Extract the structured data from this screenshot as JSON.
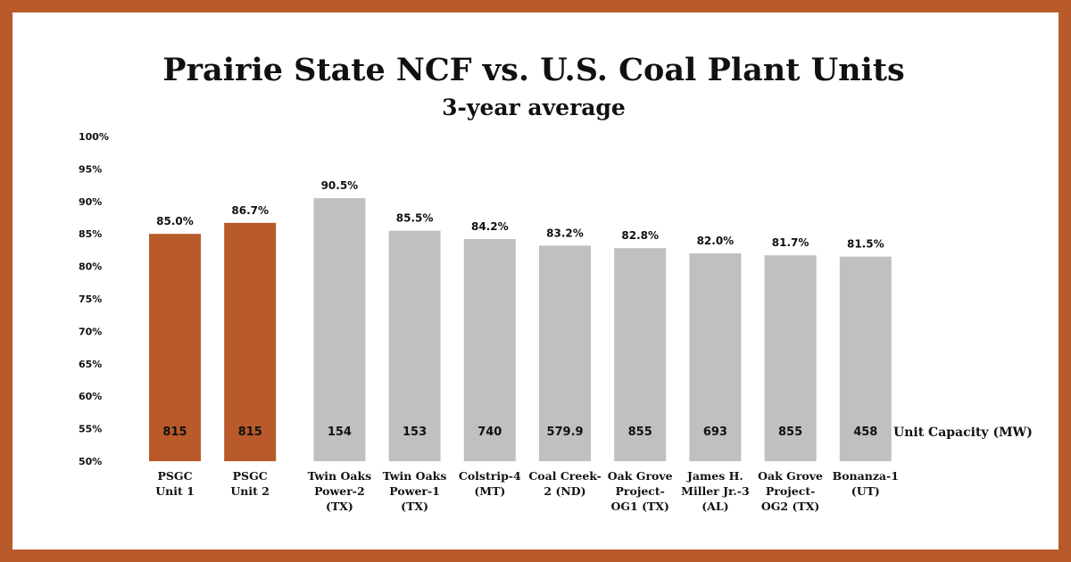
{
  "colors": {
    "border": "#b85a2a",
    "highlight_bar": "#b85a2a",
    "other_bar": "#c0c0c0"
  },
  "chart_data": {
    "type": "bar",
    "title": "Prairie State NCF vs. U.S. Coal Plant Units",
    "subtitle": "3-year average",
    "ylim": [
      50,
      100
    ],
    "yticks": [
      "100%",
      "95%",
      "90%",
      "85%",
      "80%",
      "75%",
      "70%",
      "65%",
      "60%",
      "55%",
      "50%"
    ],
    "categories": [
      [
        "PSGC",
        "Unit 1"
      ],
      [
        "PSGC",
        "Unit 2"
      ],
      [
        "Twin Oaks",
        "Power-2",
        "(TX)"
      ],
      [
        "Twin Oaks",
        "Power-1",
        "(TX)"
      ],
      [
        "Colstrip-4",
        "(MT)"
      ],
      [
        "Coal Creek-",
        "2 (ND)"
      ],
      [
        "Oak Grove",
        "Project-",
        "OG1 (TX)"
      ],
      [
        "James H.",
        "Miller Jr.-3",
        "(AL)"
      ],
      [
        "Oak Grove",
        "Project-",
        "OG2 (TX)"
      ],
      [
        "Bonanza-1",
        "(UT)"
      ]
    ],
    "values": [
      85.0,
      86.7,
      90.5,
      85.5,
      84.2,
      83.2,
      82.8,
      82.0,
      81.7,
      81.5
    ],
    "value_labels": [
      "85.0%",
      "86.7%",
      "90.5%",
      "85.5%",
      "84.2%",
      "83.2%",
      "82.8%",
      "82.0%",
      "81.7%",
      "81.5%"
    ],
    "highlight": [
      true,
      true,
      false,
      false,
      false,
      false,
      false,
      false,
      false,
      false
    ],
    "unit_capacity_mw": [
      "815",
      "815",
      "154",
      "153",
      "740",
      "579.9",
      "855",
      "693",
      "855",
      "458"
    ],
    "unit_capacity_label": "Unit Capacity (MW)",
    "grid": false,
    "legend": "none"
  }
}
